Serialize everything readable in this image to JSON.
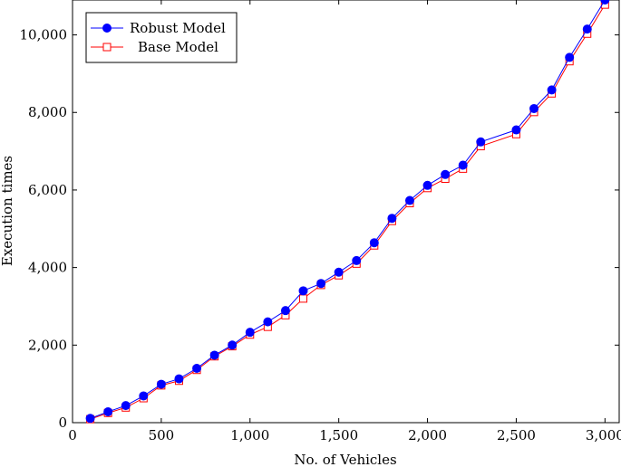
{
  "chart_data": {
    "type": "line",
    "title": "",
    "xlabel": "No. of Vehicles",
    "ylabel": "Execution times",
    "xlim": [
      0,
      3080
    ],
    "ylim": [
      0,
      10900
    ],
    "x_ticks": [
      0,
      500,
      1000,
      1500,
      2000,
      2500,
      3000
    ],
    "x_tick_labels": [
      "0",
      "500",
      "1,000",
      "1,500",
      "2,000",
      "2,500",
      "3,000"
    ],
    "y_ticks": [
      0,
      2000,
      4000,
      6000,
      8000,
      10000
    ],
    "y_tick_labels": [
      "0",
      "2,000",
      "4,000",
      "6,000",
      "8,000",
      "10,000"
    ],
    "grid": false,
    "legend_position": "top-left",
    "series": [
      {
        "name": "Robust Model",
        "color": "#0000ff",
        "marker": "filled-circle",
        "x": [
          100,
          200,
          300,
          400,
          500,
          600,
          700,
          800,
          900,
          1000,
          1100,
          1200,
          1300,
          1400,
          1500,
          1600,
          1700,
          1800,
          1900,
          2000,
          2100,
          2200,
          2300,
          2500,
          2600,
          2700,
          2800,
          2900,
          3000
        ],
        "y": [
          110,
          280,
          440,
          690,
          990,
          1130,
          1400,
          1740,
          2000,
          2330,
          2600,
          2890,
          3400,
          3590,
          3880,
          4180,
          4640,
          5270,
          5730,
          6120,
          6400,
          6640,
          7240,
          7550,
          8100,
          8580,
          9420,
          10150,
          10900
        ]
      },
      {
        "name": "Base Model",
        "color": "#ff0000",
        "marker": "open-square",
        "x": [
          100,
          200,
          300,
          400,
          500,
          600,
          700,
          800,
          900,
          1000,
          1100,
          1200,
          1300,
          1400,
          1500,
          1600,
          1700,
          1800,
          1900,
          2000,
          2100,
          2200,
          2300,
          2500,
          2600,
          2700,
          2800,
          2900,
          3000
        ],
        "y": [
          90,
          250,
          390,
          630,
          960,
          1080,
          1360,
          1710,
          1970,
          2270,
          2470,
          2770,
          3200,
          3550,
          3800,
          4100,
          4570,
          5200,
          5660,
          6050,
          6290,
          6550,
          7130,
          7440,
          8010,
          8490,
          9320,
          10030,
          10780
        ]
      }
    ]
  }
}
